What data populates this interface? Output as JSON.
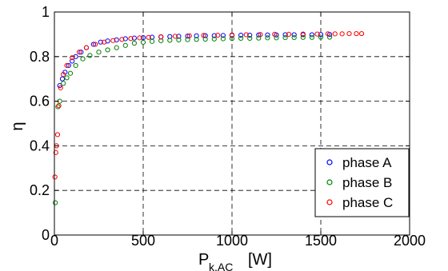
{
  "chart_data": {
    "type": "scatter",
    "title": "",
    "xlabel": "P",
    "xlabel_sub": "k,AC",
    "xlabel_unit": "[W]",
    "ylabel": "η",
    "xlim": [
      0,
      2000
    ],
    "ylim": [
      0,
      1
    ],
    "xticks": [
      "0",
      "500",
      "1000",
      "1500",
      "2000"
    ],
    "yticks": [
      "0",
      "0.2",
      "0.4",
      "0.6",
      "0.8",
      "1"
    ],
    "grid": true,
    "legend_position": "bottom-right",
    "series": [
      {
        "name": "phase A",
        "color": "#0000ff",
        "x": [
          30,
          45,
          60,
          80,
          100,
          120,
          150,
          180,
          220,
          260,
          300,
          350,
          400,
          450,
          500,
          550,
          600,
          650,
          700,
          750,
          800,
          850,
          900,
          950,
          1000,
          1050,
          1100,
          1150,
          1200,
          1250,
          1300,
          1350,
          1400,
          1450,
          1500,
          1550
        ],
        "y": [
          0.67,
          0.7,
          0.73,
          0.76,
          0.78,
          0.8,
          0.82,
          0.84,
          0.855,
          0.865,
          0.87,
          0.875,
          0.88,
          0.883,
          0.885,
          0.887,
          0.888,
          0.89,
          0.891,
          0.892,
          0.893,
          0.894,
          0.894,
          0.895,
          0.895,
          0.896,
          0.896,
          0.897,
          0.897,
          0.897,
          0.898,
          0.898,
          0.898,
          0.898,
          0.899,
          0.899
        ]
      },
      {
        "name": "phase B",
        "color": "#008000",
        "x": [
          5,
          20,
          30,
          50,
          70,
          90,
          120,
          160,
          200,
          250,
          300,
          350,
          400,
          450,
          500,
          550,
          600,
          650,
          700,
          750,
          800,
          850,
          900,
          950,
          1000,
          1050,
          1100,
          1150,
          1200,
          1250,
          1300,
          1350,
          1400,
          1450,
          1500,
          1550
        ],
        "y": [
          0.145,
          0.575,
          0.6,
          0.68,
          0.705,
          0.725,
          0.76,
          0.79,
          0.805,
          0.82,
          0.83,
          0.84,
          0.85,
          0.86,
          0.864,
          0.868,
          0.871,
          0.873,
          0.875,
          0.876,
          0.877,
          0.878,
          0.879,
          0.88,
          0.881,
          0.882,
          0.882,
          0.883,
          0.884,
          0.884,
          0.885,
          0.885,
          0.886,
          0.886,
          0.887,
          0.887
        ]
      },
      {
        "name": "phase C",
        "color": "#ff0000",
        "x": [
          3,
          8,
          12,
          18,
          25,
          35,
          50,
          70,
          100,
          140,
          180,
          230,
          280,
          330,
          380,
          430,
          480,
          530,
          600,
          680,
          760,
          840,
          920,
          1000,
          1080,
          1160,
          1240,
          1320,
          1400,
          1480,
          1540,
          1580,
          1620,
          1660,
          1700,
          1730
        ],
        "y": [
          0.26,
          0.37,
          0.4,
          0.45,
          0.58,
          0.66,
          0.72,
          0.76,
          0.795,
          0.82,
          0.84,
          0.855,
          0.865,
          0.872,
          0.877,
          0.881,
          0.884,
          0.886,
          0.889,
          0.891,
          0.893,
          0.895,
          0.896,
          0.897,
          0.898,
          0.899,
          0.9,
          0.9,
          0.901,
          0.901,
          0.902,
          0.902,
          0.902,
          0.903,
          0.903,
          0.903
        ]
      }
    ]
  }
}
